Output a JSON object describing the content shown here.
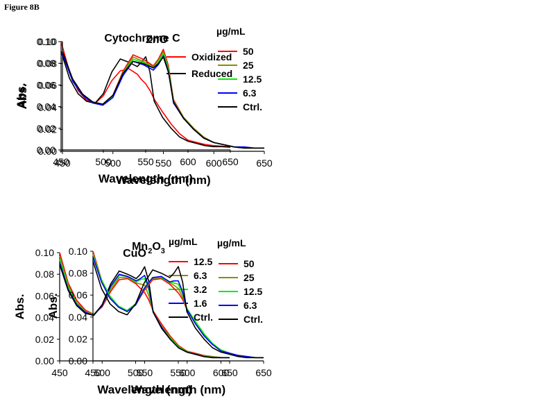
{
  "figure_label": "Figure 8B",
  "chart_data": [
    {
      "type": "line",
      "title": "Cytochrome C",
      "title_sub": "",
      "xlabel": "Wavelength (nm)",
      "ylabel": "Abs.",
      "xlim": [
        450,
        650
      ],
      "ylim": [
        0,
        0.1
      ],
      "xticks": [
        "450",
        "500",
        "550",
        "600",
        "650"
      ],
      "yticks": [
        "0.00",
        "0.02",
        "0.04",
        "0.06",
        "0.08",
        "0.10"
      ],
      "legend_unit": "",
      "x": [
        450,
        460,
        470,
        480,
        490,
        500,
        510,
        520,
        530,
        540,
        545,
        550,
        555,
        560,
        570,
        580,
        590,
        600,
        610,
        620,
        630,
        640,
        650
      ],
      "series": [
        {
          "name": "Oxidized",
          "color": "#ff0000",
          "values": [
            0.1,
            0.072,
            0.055,
            0.046,
            0.043,
            0.05,
            0.064,
            0.073,
            0.075,
            0.07,
            0.065,
            0.061,
            0.055,
            0.047,
            0.035,
            0.024,
            0.015,
            0.009,
            0.007,
            0.005,
            0.004,
            0.0035,
            0.003
          ]
        },
        {
          "name": "Reduced",
          "color": "#000000",
          "values": [
            0.091,
            0.066,
            0.052,
            0.045,
            0.043,
            0.052,
            0.072,
            0.084,
            0.081,
            0.077,
            0.081,
            0.086,
            0.072,
            0.045,
            0.03,
            0.02,
            0.012,
            0.008,
            0.006,
            0.004,
            0.003,
            0.003,
            0.0025
          ]
        }
      ]
    },
    {
      "type": "line",
      "title": "ZnO",
      "title_sub": "",
      "xlabel": "Wavelength (nm)",
      "ylabel": "Abs.",
      "xlim": [
        450,
        650
      ],
      "ylim": [
        0,
        0.1
      ],
      "xticks": [
        "450",
        "500",
        "550",
        "600",
        "650"
      ],
      "yticks": [
        "0.00",
        "0.02",
        "0.04",
        "0.06",
        "0.08",
        "0.10"
      ],
      "legend_unit": "µg/mL",
      "x": [
        450,
        460,
        470,
        480,
        490,
        500,
        510,
        520,
        530,
        540,
        545,
        550,
        555,
        560,
        570,
        580,
        590,
        600,
        610,
        620,
        630,
        640,
        650
      ],
      "series": [
        {
          "name": "50",
          "color": "#ff0000",
          "values": [
            0.09,
            0.066,
            0.052,
            0.045,
            0.043,
            0.051,
            0.073,
            0.088,
            0.084,
            0.078,
            0.084,
            0.093,
            0.078,
            0.047,
            0.031,
            0.021,
            0.013,
            0.008,
            0.006,
            0.004,
            0.003,
            0.003,
            0.003
          ]
        },
        {
          "name": "25",
          "color": "#8b8b00",
          "values": [
            0.09,
            0.066,
            0.052,
            0.045,
            0.043,
            0.051,
            0.072,
            0.086,
            0.082,
            0.077,
            0.083,
            0.091,
            0.076,
            0.046,
            0.031,
            0.021,
            0.013,
            0.008,
            0.006,
            0.004,
            0.003,
            0.003,
            0.003
          ]
        },
        {
          "name": "12.5",
          "color": "#00ee00",
          "values": [
            0.09,
            0.065,
            0.052,
            0.045,
            0.042,
            0.05,
            0.071,
            0.084,
            0.081,
            0.076,
            0.081,
            0.089,
            0.075,
            0.045,
            0.03,
            0.02,
            0.012,
            0.008,
            0.006,
            0.004,
            0.003,
            0.003,
            0.003
          ]
        },
        {
          "name": "6.3",
          "color": "#0000ff",
          "values": [
            0.089,
            0.064,
            0.051,
            0.044,
            0.042,
            0.049,
            0.069,
            0.082,
            0.079,
            0.074,
            0.079,
            0.087,
            0.073,
            0.044,
            0.03,
            0.02,
            0.012,
            0.008,
            0.006,
            0.004,
            0.004,
            0.003,
            0.003
          ]
        },
        {
          "name": "Ctrl.",
          "color": "#000000",
          "values": [
            0.091,
            0.066,
            0.052,
            0.045,
            0.043,
            0.051,
            0.071,
            0.082,
            0.08,
            0.076,
            0.08,
            0.086,
            0.072,
            0.045,
            0.03,
            0.02,
            0.012,
            0.008,
            0.006,
            0.004,
            0.003,
            0.003,
            0.003
          ]
        }
      ]
    },
    {
      "type": "line",
      "title": "CuO",
      "title_sub": "",
      "xlabel": "Wavelength (nm)",
      "ylabel": "Abs.",
      "xlim": [
        450,
        650
      ],
      "ylim": [
        0,
        0.1
      ],
      "xticks": [
        "450",
        "500",
        "550",
        "600",
        "650"
      ],
      "yticks": [
        "0.00",
        "0.02",
        "0.04",
        "0.06",
        "0.08",
        "0.10"
      ],
      "legend_unit": "µg/mL",
      "x": [
        450,
        460,
        470,
        480,
        490,
        500,
        510,
        520,
        530,
        540,
        545,
        550,
        555,
        560,
        570,
        580,
        590,
        600,
        610,
        620,
        630,
        640,
        650
      ],
      "series": [
        {
          "name": "12.5",
          "color": "#ff0000",
          "values": [
            0.1,
            0.072,
            0.056,
            0.047,
            0.043,
            0.05,
            0.064,
            0.075,
            0.076,
            0.071,
            0.067,
            0.063,
            0.056,
            0.046,
            0.034,
            0.023,
            0.014,
            0.009,
            0.007,
            0.005,
            0.004,
            0.003,
            0.003
          ]
        },
        {
          "name": "6.3",
          "color": "#8b8b00",
          "values": [
            0.097,
            0.07,
            0.054,
            0.046,
            0.043,
            0.051,
            0.066,
            0.077,
            0.077,
            0.072,
            0.071,
            0.07,
            0.06,
            0.045,
            0.032,
            0.022,
            0.013,
            0.009,
            0.006,
            0.005,
            0.004,
            0.003,
            0.003
          ]
        },
        {
          "name": "3.2",
          "color": "#00ee00",
          "values": [
            0.094,
            0.068,
            0.053,
            0.045,
            0.042,
            0.051,
            0.068,
            0.079,
            0.078,
            0.073,
            0.075,
            0.076,
            0.065,
            0.045,
            0.031,
            0.021,
            0.013,
            0.008,
            0.006,
            0.004,
            0.003,
            0.003,
            0.003
          ]
        },
        {
          "name": "1.6",
          "color": "#0000ff",
          "values": [
            0.091,
            0.066,
            0.052,
            0.045,
            0.042,
            0.051,
            0.069,
            0.08,
            0.078,
            0.074,
            0.076,
            0.079,
            0.068,
            0.045,
            0.031,
            0.02,
            0.012,
            0.008,
            0.006,
            0.004,
            0.003,
            0.003,
            0.003
          ]
        },
        {
          "name": "Ctrl.",
          "color": "#000000",
          "values": [
            0.089,
            0.065,
            0.051,
            0.044,
            0.042,
            0.052,
            0.071,
            0.083,
            0.08,
            0.076,
            0.08,
            0.087,
            0.073,
            0.045,
            0.03,
            0.02,
            0.012,
            0.008,
            0.006,
            0.004,
            0.003,
            0.003,
            0.003
          ]
        }
      ]
    },
    {
      "type": "line",
      "title": "Mn",
      "title_sub": "2",
      "title_mid": "O",
      "title_sub2": "3",
      "xlabel": "Wavelength (nm)",
      "ylabel": "Abs.",
      "xlim": [
        450,
        650
      ],
      "ylim": [
        0,
        0.1
      ],
      "xticks": [
        "450",
        "500",
        "550",
        "600",
        "650"
      ],
      "yticks": [
        "0.00",
        "0.02",
        "0.04",
        "0.06",
        "0.08",
        "0.10"
      ],
      "legend_unit": "µg/mL",
      "x": [
        450,
        460,
        470,
        480,
        490,
        500,
        510,
        520,
        530,
        540,
        545,
        550,
        555,
        560,
        570,
        580,
        590,
        600,
        610,
        620,
        630,
        640,
        650
      ],
      "series": [
        {
          "name": "50",
          "color": "#ff0000",
          "values": [
            0.1,
            0.074,
            0.058,
            0.049,
            0.045,
            0.051,
            0.064,
            0.074,
            0.075,
            0.07,
            0.066,
            0.062,
            0.056,
            0.047,
            0.035,
            0.024,
            0.015,
            0.01,
            0.007,
            0.005,
            0.004,
            0.003,
            0.003
          ]
        },
        {
          "name": "25",
          "color": "#8b8b00",
          "values": [
            0.098,
            0.073,
            0.058,
            0.049,
            0.045,
            0.051,
            0.065,
            0.075,
            0.076,
            0.071,
            0.069,
            0.066,
            0.058,
            0.047,
            0.035,
            0.024,
            0.015,
            0.01,
            0.007,
            0.005,
            0.004,
            0.003,
            0.003
          ]
        },
        {
          "name": "12.5",
          "color": "#00ee00",
          "values": [
            0.097,
            0.074,
            0.059,
            0.05,
            0.046,
            0.052,
            0.066,
            0.076,
            0.076,
            0.072,
            0.071,
            0.07,
            0.061,
            0.048,
            0.036,
            0.025,
            0.016,
            0.01,
            0.007,
            0.005,
            0.004,
            0.003,
            0.003
          ]
        },
        {
          "name": "6.3",
          "color": "#0000ff",
          "values": [
            0.095,
            0.072,
            0.057,
            0.049,
            0.045,
            0.051,
            0.066,
            0.076,
            0.077,
            0.072,
            0.073,
            0.073,
            0.063,
            0.047,
            0.034,
            0.023,
            0.015,
            0.009,
            0.007,
            0.005,
            0.004,
            0.003,
            0.003
          ]
        },
        {
          "name": "Ctrl.",
          "color": "#000000",
          "values": [
            0.091,
            0.066,
            0.052,
            0.045,
            0.042,
            0.052,
            0.071,
            0.083,
            0.08,
            0.076,
            0.08,
            0.086,
            0.072,
            0.045,
            0.03,
            0.02,
            0.012,
            0.008,
            0.006,
            0.004,
            0.003,
            0.003,
            0.003
          ]
        }
      ]
    }
  ]
}
